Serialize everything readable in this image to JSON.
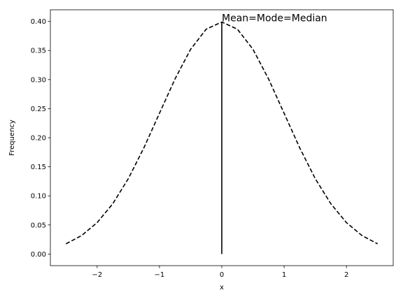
{
  "chart_data": {
    "type": "line",
    "title": "",
    "xlabel": "x",
    "ylabel": "Frequency",
    "xlim": [
      -2.75,
      2.75
    ],
    "ylim": [
      -0.02,
      0.42
    ],
    "x_ticks": [
      -2,
      -1,
      0,
      1,
      2
    ],
    "x_tick_labels": [
      "−2",
      "−1",
      "0",
      "1",
      "2"
    ],
    "y_ticks": [
      0.0,
      0.05,
      0.1,
      0.15,
      0.2,
      0.25,
      0.3,
      0.35,
      0.4
    ],
    "y_tick_labels": [
      "0.00",
      "0.05",
      "0.10",
      "0.15",
      "0.20",
      "0.25",
      "0.30",
      "0.35",
      "0.40"
    ],
    "grid": false,
    "series": [
      {
        "style": "dashed",
        "color": "#000000",
        "x": [
          -2.5,
          -2.25,
          -2.0,
          -1.75,
          -1.5,
          -1.25,
          -1.0,
          -0.75,
          -0.5,
          -0.25,
          0.0,
          0.25,
          0.5,
          0.75,
          1.0,
          1.25,
          1.5,
          1.75,
          2.0,
          2.25,
          2.5
        ],
        "y": [
          0.0175,
          0.0317,
          0.054,
          0.0863,
          0.1295,
          0.1826,
          0.242,
          0.3011,
          0.3521,
          0.3867,
          0.3989,
          0.3867,
          0.3521,
          0.3011,
          0.242,
          0.1826,
          0.1295,
          0.0863,
          0.054,
          0.0317,
          0.0175
        ]
      }
    ],
    "vline": {
      "x": 0,
      "y_from": 0,
      "y_to": 0.3989,
      "color": "#000000"
    },
    "annotations": [
      {
        "text": "Mean=Mode=Median",
        "x": 0,
        "y": 0.3989
      }
    ]
  }
}
